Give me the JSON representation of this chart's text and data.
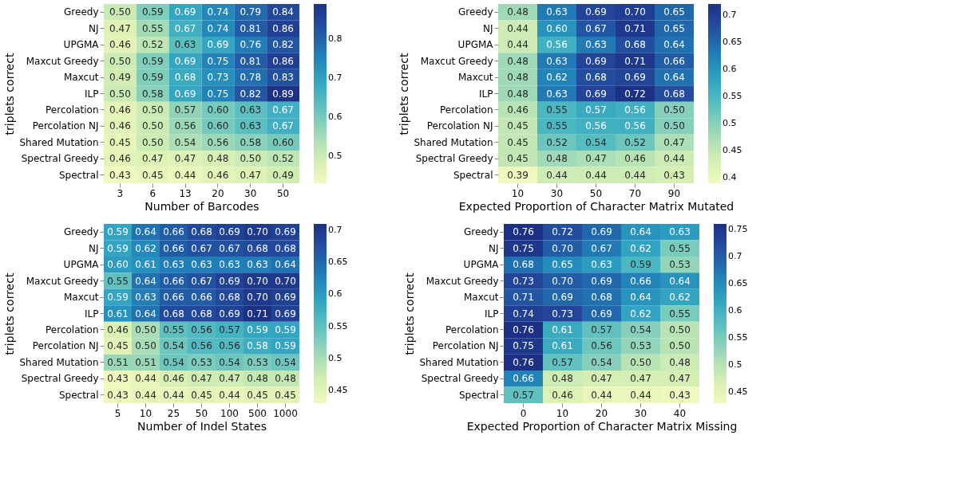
{
  "chart_data": [
    {
      "type": "heatmap",
      "xlabel": "Number of Barcodes",
      "ylabel": "triplets correct",
      "categories": [
        "3",
        "6",
        "13",
        "20",
        "30",
        "50"
      ],
      "y_categories": [
        "Greedy",
        "NJ",
        "UPGMA",
        "Maxcut Greedy",
        "Maxcut",
        "ILP",
        "Percolation",
        "Percolation NJ",
        "Shared Mutation",
        "Spectral Greedy",
        "Spectral"
      ],
      "cells": [
        [
          0.5,
          0.59,
          0.69,
          0.74,
          0.79,
          0.84
        ],
        [
          0.47,
          0.55,
          0.67,
          0.74,
          0.81,
          0.86
        ],
        [
          0.46,
          0.52,
          0.63,
          0.69,
          0.76,
          0.82
        ],
        [
          0.5,
          0.59,
          0.69,
          0.75,
          0.81,
          0.86
        ],
        [
          0.49,
          0.59,
          0.68,
          0.73,
          0.78,
          0.83
        ],
        [
          0.5,
          0.58,
          0.69,
          0.75,
          0.82,
          0.89
        ],
        [
          0.46,
          0.5,
          0.57,
          0.6,
          0.63,
          0.67
        ],
        [
          0.46,
          0.5,
          0.56,
          0.6,
          0.63,
          0.67
        ],
        [
          0.45,
          0.5,
          0.54,
          0.56,
          0.58,
          0.6
        ],
        [
          0.46,
          0.47,
          0.47,
          0.48,
          0.5,
          0.52
        ],
        [
          0.43,
          0.45,
          0.44,
          0.46,
          0.47,
          0.49
        ]
      ],
      "cell_labels": [
        [
          "0.50",
          "0.59",
          "0.69",
          "0.74",
          "0.79",
          "0.84"
        ],
        [
          "0.47",
          "0.55",
          "0.67",
          "0.74",
          "0.81",
          "0.86"
        ],
        [
          "0.46",
          "0.52",
          "0.63",
          "0.69",
          "0.76",
          "0.82"
        ],
        [
          "0.50",
          "0.59",
          "0.69",
          "0.75",
          "0.81",
          "0.86"
        ],
        [
          "0.49",
          "0.59",
          "0.68",
          "0.73",
          "0.78",
          "0.83"
        ],
        [
          "0.50",
          "0.58",
          "0.69",
          "0.75",
          "0.82",
          "0.89"
        ],
        [
          "0.46",
          "0.50",
          "0.57",
          "0.60",
          "0.63",
          "0.67"
        ],
        [
          "0.46",
          "0.50",
          "0.56",
          "0.60",
          "0.63",
          "0.67"
        ],
        [
          "0.45",
          "0.50",
          "0.54",
          "0.56",
          "0.58",
          "0.60"
        ],
        [
          "0.46",
          "0.47",
          "0.47",
          "0.48",
          "0.50",
          "0.52"
        ],
        [
          "0.43",
          "0.45",
          "0.44",
          "0.46",
          "0.47",
          "0.49"
        ]
      ],
      "clim": [
        0.43,
        0.89
      ],
      "cticks": [
        0.5,
        0.6,
        0.7,
        0.8
      ]
    },
    {
      "type": "heatmap",
      "xlabel": "Expected Proportion of Character Matrix Mutated",
      "ylabel": "triplets correct",
      "categories": [
        "10",
        "30",
        "50",
        "70",
        "90"
      ],
      "y_categories": [
        "Greedy",
        "NJ",
        "UPGMA",
        "Maxcut Greedy",
        "Maxcut",
        "ILP",
        "Percolation",
        "Percolation NJ",
        "Shared Mutation",
        "Spectral Greedy",
        "Spectral"
      ],
      "cells": [
        [
          0.48,
          0.63,
          0.69,
          0.7,
          0.65
        ],
        [
          0.44,
          0.6,
          0.67,
          0.71,
          0.65
        ],
        [
          0.44,
          0.56,
          0.63,
          0.68,
          0.64
        ],
        [
          0.48,
          0.63,
          0.69,
          0.71,
          0.66
        ],
        [
          0.48,
          0.62,
          0.68,
          0.69,
          0.64
        ],
        [
          0.48,
          0.63,
          0.69,
          0.72,
          0.68
        ],
        [
          0.46,
          0.55,
          0.57,
          0.56,
          0.5
        ],
        [
          0.45,
          0.55,
          0.56,
          0.56,
          0.5
        ],
        [
          0.45,
          0.52,
          0.54,
          0.52,
          0.47
        ],
        [
          0.45,
          0.48,
          0.47,
          0.46,
          0.44
        ],
        [
          0.39,
          0.44,
          0.44,
          0.44,
          0.43
        ]
      ],
      "cell_labels": [
        [
          "0.48",
          "0.63",
          "0.69",
          "0.70",
          "0.65"
        ],
        [
          "0.44",
          "0.60",
          "0.67",
          "0.71",
          "0.65"
        ],
        [
          "0.44",
          "0.56",
          "0.63",
          "0.68",
          "0.64"
        ],
        [
          "0.48",
          "0.63",
          "0.69",
          "0.71",
          "0.66"
        ],
        [
          "0.48",
          "0.62",
          "0.68",
          "0.69",
          "0.64"
        ],
        [
          "0.48",
          "0.63",
          "0.69",
          "0.72",
          "0.68"
        ],
        [
          "0.46",
          "0.55",
          "0.57",
          "0.56",
          "0.50"
        ],
        [
          "0.45",
          "0.55",
          "0.56",
          "0.56",
          "0.50"
        ],
        [
          "0.45",
          "0.52",
          "0.54",
          "0.52",
          "0.47"
        ],
        [
          "0.45",
          "0.48",
          "0.47",
          "0.46",
          "0.44"
        ],
        [
          "0.39",
          "0.44",
          "0.44",
          "0.44",
          "0.43"
        ]
      ],
      "clim": [
        0.39,
        0.72
      ],
      "cticks": [
        0.4,
        0.45,
        0.5,
        0.55,
        0.6,
        0.65,
        0.7
      ]
    },
    {
      "type": "heatmap",
      "xlabel": "Number of Indel States",
      "ylabel": "triplets correct",
      "categories": [
        "5",
        "10",
        "25",
        "50",
        "100",
        "500",
        "1000"
      ],
      "y_categories": [
        "Greedy",
        "NJ",
        "UPGMA",
        "Maxcut Greedy",
        "Maxcut",
        "ILP",
        "Percolation",
        "Percolation NJ",
        "Shared Mutation",
        "Spectral Greedy",
        "Spectral"
      ],
      "cells": [
        [
          0.59,
          0.64,
          0.66,
          0.68,
          0.69,
          0.7,
          0.69
        ],
        [
          0.59,
          0.62,
          0.66,
          0.67,
          0.67,
          0.68,
          0.68
        ],
        [
          0.6,
          0.61,
          0.63,
          0.63,
          0.63,
          0.63,
          0.64
        ],
        [
          0.55,
          0.64,
          0.66,
          0.67,
          0.69,
          0.7,
          0.7
        ],
        [
          0.59,
          0.63,
          0.66,
          0.66,
          0.68,
          0.7,
          0.69
        ],
        [
          0.61,
          0.64,
          0.68,
          0.68,
          0.69,
          0.71,
          0.69
        ],
        [
          0.46,
          0.5,
          0.55,
          0.56,
          0.57,
          0.59,
          0.59
        ],
        [
          0.45,
          0.5,
          0.54,
          0.56,
          0.56,
          0.58,
          0.59
        ],
        [
          0.51,
          0.51,
          0.54,
          0.53,
          0.54,
          0.53,
          0.54
        ],
        [
          0.43,
          0.44,
          0.46,
          0.47,
          0.47,
          0.48,
          0.48
        ],
        [
          0.43,
          0.44,
          0.44,
          0.45,
          0.44,
          0.45,
          0.45
        ]
      ],
      "cell_labels": [
        [
          "0.59",
          "0.64",
          "0.66",
          "0.68",
          "0.69",
          "0.70",
          "0.69"
        ],
        [
          "0.59",
          "0.62",
          "0.66",
          "0.67",
          "0.67",
          "0.68",
          "0.68"
        ],
        [
          "0.60",
          "0.61",
          "0.63",
          "0.63",
          "0.63",
          "0.63",
          "0.64"
        ],
        [
          "0.55",
          "0.64",
          "0.66",
          "0.67",
          "0.69",
          "0.70",
          "0.70"
        ],
        [
          "0.59",
          "0.63",
          "0.66",
          "0.66",
          "0.68",
          "0.70",
          "0.69"
        ],
        [
          "0.61",
          "0.64",
          "0.68",
          "0.68",
          "0.69",
          "0.71",
          "0.69"
        ],
        [
          "0.46",
          "0.50",
          "0.55",
          "0.56",
          "0.57",
          "0.59",
          "0.59"
        ],
        [
          "0.45",
          "0.50",
          "0.54",
          "0.56",
          "0.56",
          "0.58",
          "0.59"
        ],
        [
          "0.51",
          "0.51",
          "0.54",
          "0.53",
          "0.54",
          "0.53",
          "0.54"
        ],
        [
          "0.43",
          "0.44",
          "0.46",
          "0.47",
          "0.47",
          "0.48",
          "0.48"
        ],
        [
          "0.43",
          "0.44",
          "0.44",
          "0.45",
          "0.44",
          "0.45",
          "0.45"
        ]
      ],
      "clim": [
        0.43,
        0.71
      ],
      "cticks": [
        0.45,
        0.5,
        0.55,
        0.6,
        0.65,
        0.7
      ]
    },
    {
      "type": "heatmap",
      "xlabel": "Expected Proportion of Character Matrix Missing",
      "ylabel": "triplets correct",
      "categories": [
        "0",
        "10",
        "20",
        "30",
        "40"
      ],
      "y_categories": [
        "Greedy",
        "NJ",
        "UPGMA",
        "Maxcut Greedy",
        "Maxcut",
        "ILP",
        "Percolation",
        "Percolation NJ",
        "Shared Mutation",
        "Spectral Greedy",
        "Spectral"
      ],
      "cells": [
        [
          0.76,
          0.72,
          0.69,
          0.64,
          0.63
        ],
        [
          0.75,
          0.7,
          0.67,
          0.62,
          0.55
        ],
        [
          0.68,
          0.65,
          0.63,
          0.59,
          0.53
        ],
        [
          0.73,
          0.7,
          0.69,
          0.66,
          0.64
        ],
        [
          0.71,
          0.69,
          0.68,
          0.64,
          0.62
        ],
        [
          0.74,
          0.73,
          0.69,
          0.62,
          0.55
        ],
        [
          0.76,
          0.61,
          0.57,
          0.54,
          0.5
        ],
        [
          0.75,
          0.61,
          0.56,
          0.53,
          0.5
        ],
        [
          0.76,
          0.57,
          0.54,
          0.5,
          0.48
        ],
        [
          0.66,
          0.48,
          0.47,
          0.47,
          0.47
        ],
        [
          0.57,
          0.46,
          0.44,
          0.44,
          0.43
        ]
      ],
      "cell_labels": [
        [
          "0.76",
          "0.72",
          "0.69",
          "0.64",
          "0.63"
        ],
        [
          "0.75",
          "0.70",
          "0.67",
          "0.62",
          "0.55"
        ],
        [
          "0.68",
          "0.65",
          "0.63",
          "0.59",
          "0.53"
        ],
        [
          "0.73",
          "0.70",
          "0.69",
          "0.66",
          "0.64"
        ],
        [
          "0.71",
          "0.69",
          "0.68",
          "0.64",
          "0.62"
        ],
        [
          "0.74",
          "0.73",
          "0.69",
          "0.62",
          "0.55"
        ],
        [
          "0.76",
          "0.61",
          "0.57",
          "0.54",
          "0.50"
        ],
        [
          "0.75",
          "0.61",
          "0.56",
          "0.53",
          "0.50"
        ],
        [
          "0.76",
          "0.57",
          "0.54",
          "0.50",
          "0.48"
        ],
        [
          "0.66",
          "0.48",
          "0.47",
          "0.47",
          "0.47"
        ],
        [
          "0.57",
          "0.46",
          "0.44",
          "0.44",
          "0.43"
        ]
      ],
      "clim": [
        0.43,
        0.76
      ],
      "cticks": [
        0.45,
        0.5,
        0.55,
        0.6,
        0.65,
        0.7,
        0.75
      ]
    }
  ]
}
